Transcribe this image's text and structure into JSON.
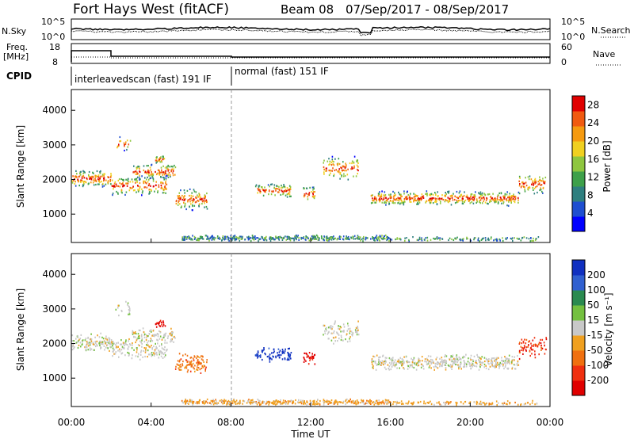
{
  "header": {
    "station": "Fort Hays West (fitACF)",
    "beam": "Beam 08",
    "date_range": "07/Sep/2017 - 08/Sep/2017"
  },
  "strips": {
    "nsky_label": "N.Sky",
    "nsearch_label": "N.Search",
    "nsky_ticks": [
      "10^5",
      "10^0"
    ],
    "nsearch_ticks": [
      "10^5",
      "10^0"
    ],
    "freq_label": "Freq.",
    "freq_unit": "[MHz]",
    "freq_ticks": [
      "18",
      "8"
    ],
    "nave_label": "Nave",
    "nave_ticks": [
      "60",
      "0"
    ],
    "cpid_label": "CPID",
    "cpid_modes": [
      {
        "label": "interleavedscan (fast) 191 IF",
        "start_hour": 0
      },
      {
        "label": "normal (fast) 151 IF",
        "start_hour": 8
      }
    ]
  },
  "chart_data": [
    {
      "type": "heatmap",
      "name": "power",
      "ylabel": "Slant Range [km]",
      "xlabel": "Time UT",
      "x_ticks": [
        "00:00",
        "04:00",
        "08:00",
        "12:00",
        "16:00",
        "20:00",
        "00:00"
      ],
      "x_range_hours": [
        0,
        24
      ],
      "y_range_km": [
        180,
        4600
      ],
      "y_ticks": [
        1000,
        2000,
        3000,
        4000
      ],
      "colorbar_label": "Power [dB]",
      "colorbar_ticks": [
        4,
        8,
        12,
        16,
        20,
        24,
        28
      ],
      "colorbar_range": [
        0,
        30
      ],
      "colors": [
        "#0000ff",
        "#1e4ed0",
        "#2f7f7f",
        "#3ea04a",
        "#8ec63f",
        "#f0d020",
        "#f59a10",
        "#f05a10",
        "#e00000"
      ]
    },
    {
      "type": "heatmap",
      "name": "velocity",
      "ylabel": "Slant Range [km]",
      "xlabel": "Time UT",
      "x_ticks": [
        "00:00",
        "04:00",
        "08:00",
        "12:00",
        "16:00",
        "20:00",
        "00:00"
      ],
      "x_range_hours": [
        0,
        24
      ],
      "y_range_km": [
        180,
        4600
      ],
      "y_ticks": [
        1000,
        2000,
        3000,
        4000
      ],
      "colorbar_label": "Velocity [m s⁻¹]",
      "colorbar_ticks": [
        200,
        100,
        50,
        15,
        -15,
        -50,
        -100,
        -200
      ],
      "colors": [
        "#1030c0",
        "#3060d0",
        "#2a8a50",
        "#74c040",
        "#c8c8c8",
        "#f0a020",
        "#f07010",
        "#f03010",
        "#e00000"
      ]
    }
  ],
  "x_axis_title": "Time UT"
}
